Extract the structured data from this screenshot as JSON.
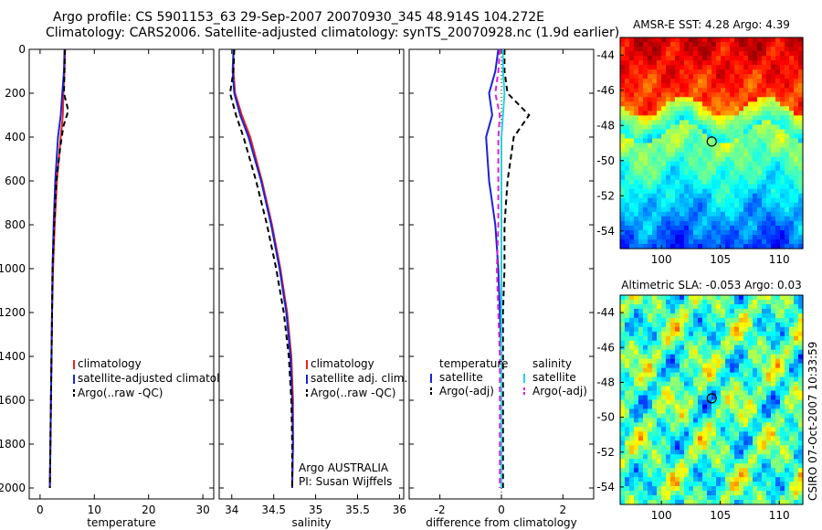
{
  "header": {
    "line1": "Argo profile: CS 5901153_63 29-Sep-2007 20070930_345 48.914S 104.272E",
    "line2": "Climatology: CARS2006. Satellite-adjusted climatology: synTS_20070928.nc (1.9d earlier)"
  },
  "side_note": "CSIRO 07-Oct-2007 10:33:59",
  "colors": {
    "climatology": "#e8231e",
    "satellite": "#1a24d8",
    "argo": "#000000",
    "satellite_diff_salinity": "#22d4e0",
    "argo_diff_salinity": "#e020d8"
  },
  "chart_data": [
    {
      "type": "line",
      "panel": "temperature",
      "xlabel": "temperature",
      "ylabel": "",
      "xlim": [
        -2,
        32
      ],
      "ylim": [
        2050,
        0
      ],
      "xticks": [
        0,
        10,
        20,
        30
      ],
      "yticks": [
        0,
        200,
        400,
        600,
        800,
        1000,
        1200,
        1400,
        1600,
        1800,
        2000
      ],
      "legend": [
        "climatology",
        "satellite-adjusted climatology",
        "Argo(..raw -QC)"
      ],
      "series": [
        {
          "name": "climatology",
          "style": "solid",
          "color_key": "climatology",
          "x": [
            4.6,
            4.5,
            4.3,
            4.2,
            3.8,
            3.1,
            2.7,
            2.4,
            2.2,
            2.1,
            2.0,
            1.9,
            1.8
          ],
          "y": [
            0,
            100,
            200,
            300,
            400,
            600,
            800,
            1000,
            1200,
            1400,
            1600,
            1800,
            2000
          ]
        },
        {
          "name": "satellite-adjusted climatology",
          "style": "solid",
          "color_key": "satellite",
          "x": [
            4.5,
            4.4,
            4.1,
            3.8,
            3.3,
            2.8,
            2.5,
            2.3,
            2.2,
            2.1,
            2.0,
            1.9,
            1.8
          ],
          "y": [
            0,
            100,
            200,
            300,
            400,
            600,
            800,
            1000,
            1200,
            1400,
            1600,
            1800,
            2000
          ]
        },
        {
          "name": "Argo(..raw -QC)",
          "style": "dashed",
          "color_key": "argo",
          "x": [
            4.6,
            4.5,
            4.4,
            5.2,
            4.3,
            3.7,
            3.0,
            2.6,
            2.3,
            2.2,
            2.1,
            2.0,
            1.9,
            1.8
          ],
          "y": [
            0,
            100,
            200,
            280,
            350,
            450,
            600,
            800,
            1000,
            1200,
            1400,
            1600,
            1800,
            2000
          ]
        }
      ]
    },
    {
      "type": "line",
      "panel": "salinity",
      "xlabel": "salinity",
      "ylabel": "",
      "xlim": [
        33.85,
        36.05
      ],
      "ylim": [
        2050,
        0
      ],
      "xticks": [
        34,
        34.5,
        35,
        35.5,
        36
      ],
      "legend": [
        "climatology",
        "satellite adj. clim.",
        "Argo(..raw -QC)"
      ],
      "annotation": [
        "Argo AUSTRALIA",
        "PI: Susan Wijffels"
      ],
      "series": [
        {
          "name": "climatology",
          "style": "solid",
          "color_key": "climatology",
          "x": [
            34.02,
            34.02,
            34.04,
            34.12,
            34.22,
            34.36,
            34.48,
            34.58,
            34.66,
            34.71,
            34.73,
            34.73,
            34.72
          ],
          "y": [
            0,
            100,
            200,
            300,
            400,
            600,
            800,
            1000,
            1200,
            1400,
            1600,
            1800,
            2000
          ]
        },
        {
          "name": "satellite adj. clim.",
          "style": "solid",
          "color_key": "satellite",
          "x": [
            34.02,
            34.01,
            34.03,
            34.1,
            34.2,
            34.35,
            34.47,
            34.57,
            34.65,
            34.7,
            34.72,
            34.73,
            34.72
          ],
          "y": [
            0,
            100,
            200,
            300,
            400,
            600,
            800,
            1000,
            1200,
            1400,
            1600,
            1800,
            2000
          ]
        },
        {
          "name": "Argo(..raw -QC)",
          "style": "dashed",
          "color_key": "argo",
          "x": [
            34.03,
            34.02,
            33.98,
            34.05,
            34.14,
            34.29,
            34.42,
            34.53,
            34.62,
            34.68,
            34.71,
            34.72,
            34.72
          ],
          "y": [
            0,
            100,
            200,
            300,
            400,
            600,
            800,
            1000,
            1200,
            1400,
            1600,
            1800,
            2000
          ]
        }
      ]
    },
    {
      "type": "line",
      "panel": "difference",
      "xlabel": "difference from climatology",
      "ylabel": "",
      "xlim": [
        -3.0,
        3.0
      ],
      "ylim": [
        2050,
        0
      ],
      "xticks": [
        -2,
        0,
        2
      ],
      "legend_left": [
        "temperature",
        "satellite",
        "Argo(-adj)"
      ],
      "legend_right": [
        "salinity",
        "satellite",
        "Argo(-adj)"
      ],
      "series": [
        {
          "name": "satellite",
          "group": "temperature",
          "style": "solid",
          "color_key": "satellite",
          "x": [
            -0.1,
            -0.2,
            -0.4,
            -0.3,
            -0.5,
            -0.4,
            -0.2,
            -0.1,
            -0.05,
            0,
            0,
            0
          ],
          "y": [
            0,
            100,
            200,
            300,
            400,
            600,
            800,
            1000,
            1200,
            1400,
            1700,
            2000
          ]
        },
        {
          "name": "Argo(-adj)",
          "group": "temperature",
          "style": "dashed",
          "color_key": "argo",
          "x": [
            0.1,
            0.1,
            0.2,
            0.9,
            0.4,
            0.2,
            0.1,
            0.1,
            0.05,
            0.05,
            0.05,
            0.05
          ],
          "y": [
            0,
            100,
            200,
            300,
            400,
            600,
            800,
            1000,
            1200,
            1400,
            1700,
            2000
          ]
        },
        {
          "name": "satellite",
          "group": "salinity",
          "style": "solid",
          "color_key": "satellite_diff_salinity",
          "x": [
            0.05,
            0.05,
            0.1,
            0.05,
            0.0,
            0.0,
            0.0,
            0.0,
            0.0,
            0.0,
            0.0,
            0.0
          ],
          "y": [
            0,
            100,
            200,
            300,
            400,
            600,
            800,
            1000,
            1200,
            1400,
            1700,
            2000
          ]
        },
        {
          "name": "Argo(-adj)",
          "group": "salinity",
          "style": "dashed",
          "color_key": "argo_diff_salinity",
          "x": [
            -0.05,
            -0.1,
            -0.2,
            -0.05,
            -0.1,
            -0.1,
            -0.1,
            -0.15,
            -0.1,
            -0.05,
            -0.05,
            -0.05
          ],
          "y": [
            0,
            100,
            200,
            300,
            400,
            600,
            800,
            1000,
            1200,
            1400,
            1700,
            2000
          ]
        }
      ]
    },
    {
      "type": "heatmap",
      "panel": "sst_map",
      "title": "AMSR-E SST: 4.28 Argo: 4.39",
      "xlim": [
        96.5,
        112
      ],
      "ylim": [
        -55,
        -43
      ],
      "xticks": [
        100,
        105,
        110
      ],
      "yticks": [
        -44,
        -46,
        -48,
        -50,
        -52,
        -54
      ],
      "marker": {
        "lon": 104.272,
        "lat": -48.914
      }
    },
    {
      "type": "heatmap",
      "panel": "sla_map",
      "title": "Altimetric SLA: -0.053 Argo: 0.03",
      "xlim": [
        96.5,
        112
      ],
      "ylim": [
        -55,
        -43
      ],
      "xticks": [
        100,
        105,
        110
      ],
      "yticks": [
        -44,
        -46,
        -48,
        -50,
        -52,
        -54
      ],
      "marker": {
        "lon": 104.272,
        "lat": -48.914
      }
    }
  ]
}
